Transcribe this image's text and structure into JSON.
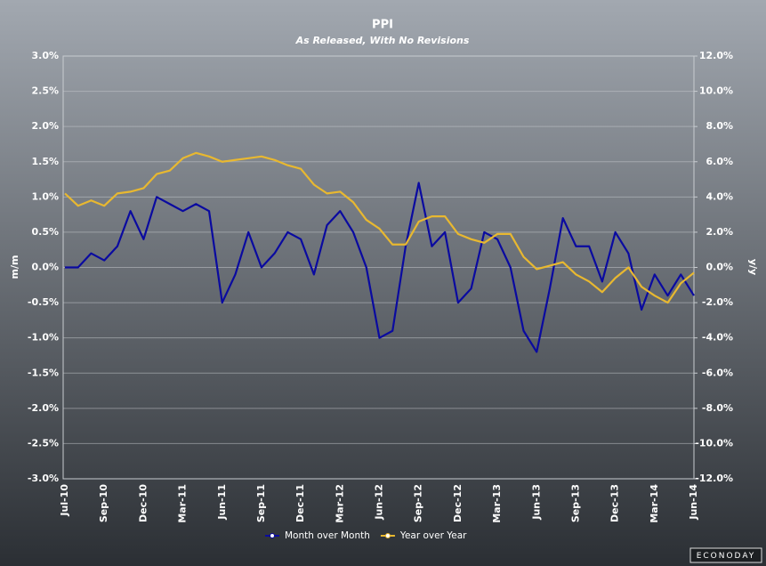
{
  "chart_data": {
    "type": "line",
    "title": "PPI",
    "subtitle": "As Released, With No Revisions",
    "y_label": "m/m",
    "y2_label": "y/y",
    "categories": [
      "Jul-10",
      null,
      null,
      "Sep-10",
      null,
      null,
      "Dec-10",
      null,
      null,
      "Mar-11",
      null,
      null,
      "Jun-11",
      null,
      null,
      "Sep-11",
      null,
      null,
      "Dec-11",
      null,
      null,
      "Mar-12",
      null,
      null,
      "Jun-12",
      null,
      null,
      "Sep-12",
      null,
      null,
      "Dec-12",
      null,
      null,
      "Mar-13",
      null,
      null,
      "Jun-13",
      null,
      null,
      "Sep-13",
      null,
      null,
      "Dec-13",
      null,
      null,
      "Mar-14",
      null,
      null,
      "Jun-14"
    ],
    "series": [
      {
        "name": "Month over Month",
        "color": "#0a0aa0",
        "axis": "y",
        "values": [
          0.0,
          0.0,
          0.2,
          0.1,
          0.3,
          0.8,
          0.4,
          1.0,
          0.9,
          0.8,
          0.9,
          0.8,
          -0.5,
          -0.1,
          0.5,
          0.0,
          0.2,
          0.5,
          0.4,
          -0.1,
          0.6,
          0.8,
          0.5,
          0.0,
          -1.0,
          -0.9,
          0.3,
          1.2,
          0.3,
          0.5,
          -0.5,
          -0.3,
          0.5,
          0.4,
          0.0,
          -0.9,
          -1.2,
          -0.3,
          0.7,
          0.3,
          0.3,
          -0.2,
          0.5,
          0.2,
          -0.6,
          -0.1,
          -0.4,
          -0.1,
          -0.4
        ]
      },
      {
        "name": "Year over Year",
        "color": "#e8b830",
        "axis": "y2",
        "values": [
          4.2,
          3.5,
          3.8,
          3.5,
          4.2,
          4.3,
          4.5,
          5.3,
          5.5,
          6.2,
          6.5,
          6.3,
          6.0,
          6.1,
          6.2,
          6.3,
          6.1,
          5.8,
          5.6,
          4.7,
          4.2,
          4.3,
          3.7,
          2.7,
          2.2,
          1.3,
          1.3,
          2.6,
          2.9,
          2.9,
          1.9,
          1.6,
          1.4,
          1.9,
          1.9,
          0.6,
          -0.1,
          0.1,
          0.3,
          -0.4,
          -0.8,
          -1.4,
          -0.6,
          0.0,
          -1.1,
          -1.6,
          -2.0,
          -0.9,
          -0.3
        ]
      }
    ],
    "ylim": [
      -3,
      3
    ],
    "yticks": [
      {
        "value": -3,
        "label": "-3.0%"
      },
      {
        "value": -2.5,
        "label": "-2.5%"
      },
      {
        "value": -2,
        "label": "-2.0%"
      },
      {
        "value": -1.5,
        "label": "-1.5%"
      },
      {
        "value": -1,
        "label": "-1.0%"
      },
      {
        "value": -0.5,
        "label": "-0.5%"
      },
      {
        "value": 0,
        "label": "0.0%"
      },
      {
        "value": 0.5,
        "label": "0.5%"
      },
      {
        "value": 1,
        "label": "1.0%"
      },
      {
        "value": 1.5,
        "label": "1.5%"
      },
      {
        "value": 2,
        "label": "2.0%"
      },
      {
        "value": 2.5,
        "label": "2.5%"
      },
      {
        "value": 3,
        "label": "3.0%"
      }
    ],
    "y2lim": [
      -12,
      12
    ],
    "y2ticks": [
      {
        "value": -12,
        "label": "-12.0%"
      },
      {
        "value": -10,
        "label": "-10.0%"
      },
      {
        "value": -8,
        "label": "-8.0%"
      },
      {
        "value": -6,
        "label": "-6.0%"
      },
      {
        "value": -4,
        "label": "-4.0%"
      },
      {
        "value": -2,
        "label": "-2.0%"
      },
      {
        "value": 0,
        "label": "0.0%"
      },
      {
        "value": 2,
        "label": "2.0%"
      },
      {
        "value": 4,
        "label": "4.0%"
      },
      {
        "value": 6,
        "label": "6.0%"
      },
      {
        "value": 8,
        "label": "8.0%"
      },
      {
        "value": 10,
        "label": "10.0%"
      },
      {
        "value": 12,
        "label": "12.0%"
      }
    ],
    "grid": true,
    "legend": "bottom",
    "logo": "ECONODAY"
  }
}
